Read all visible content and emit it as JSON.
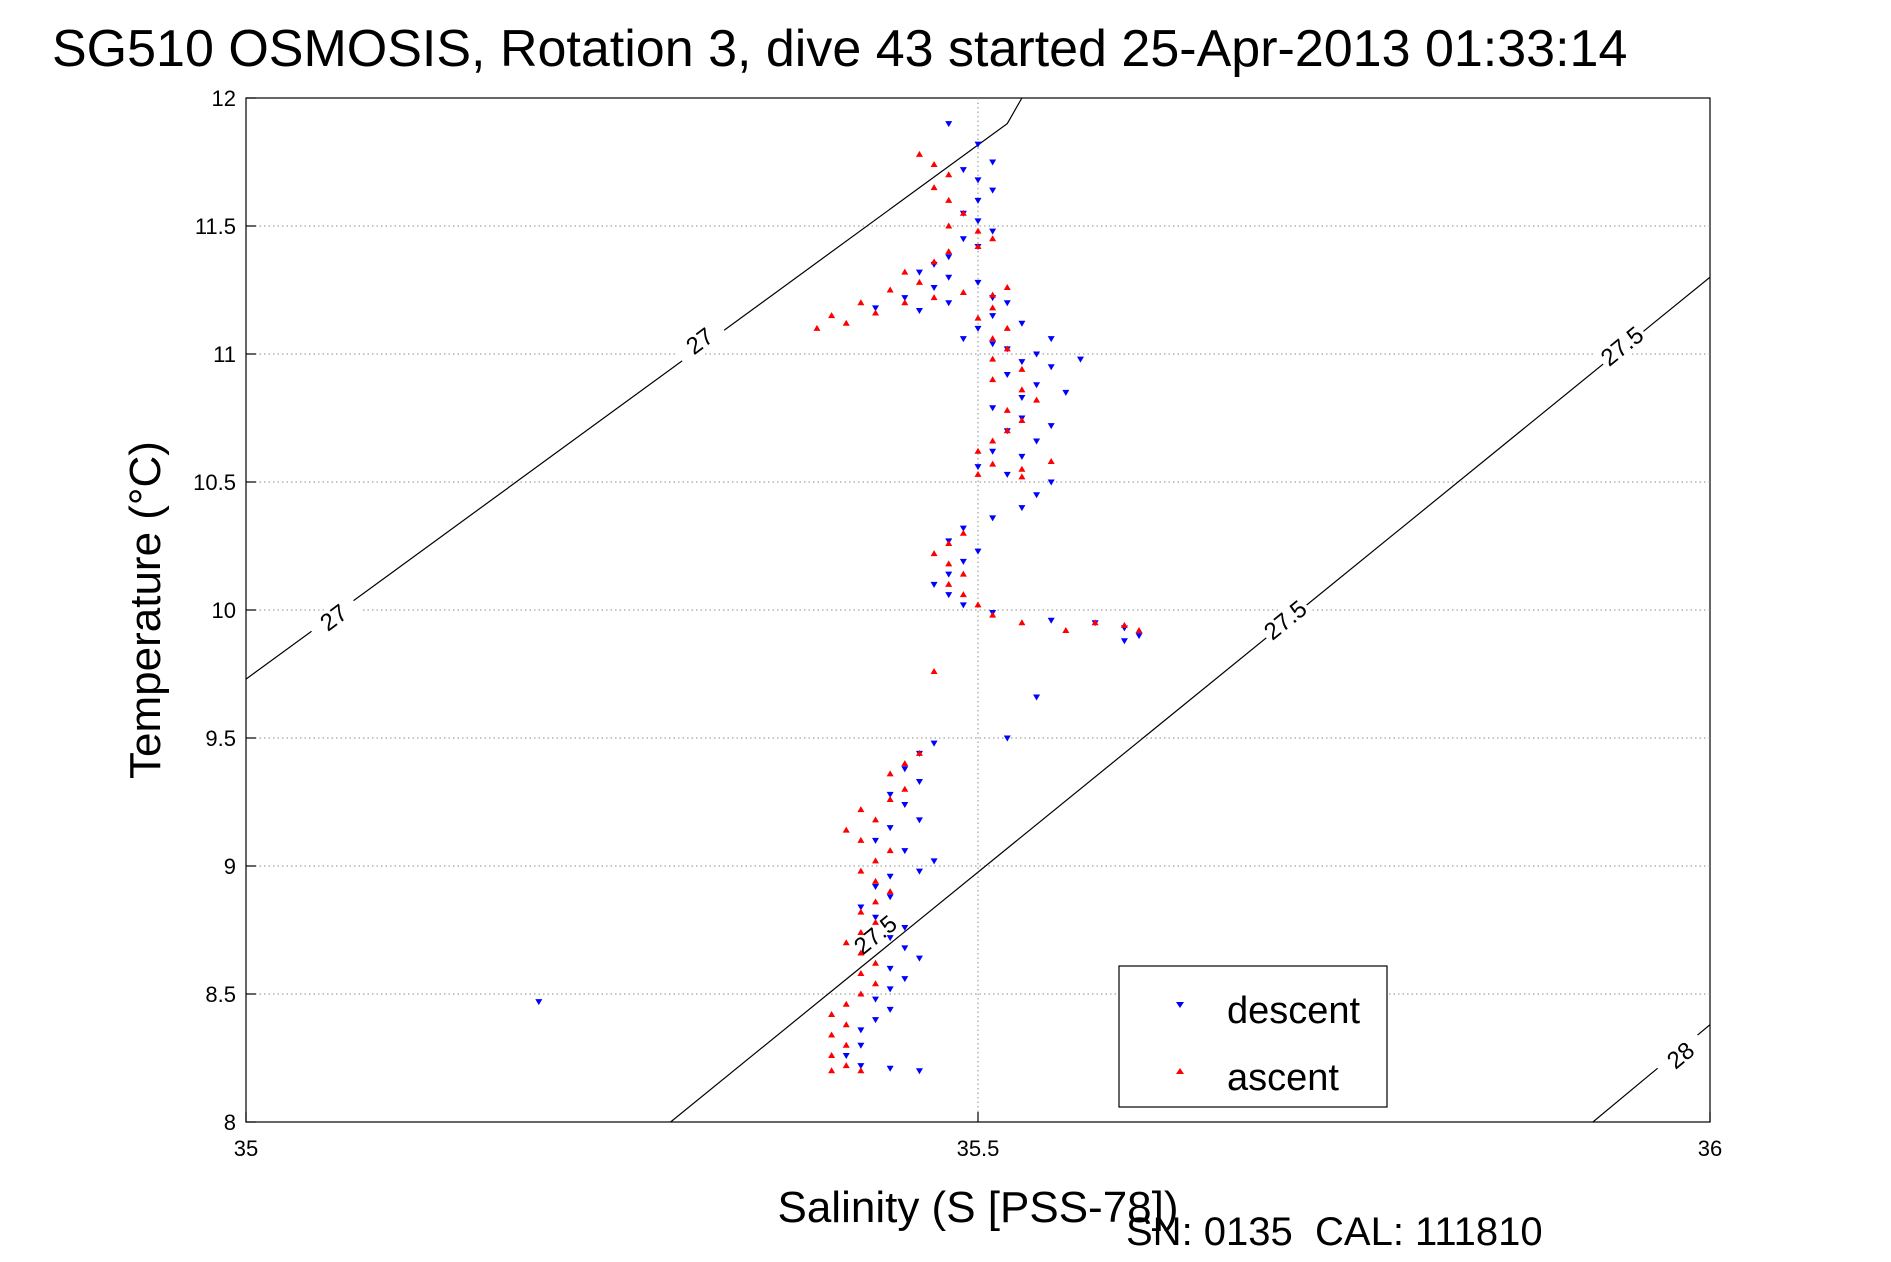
{
  "chart_data": {
    "type": "scatter",
    "title": "SG510 OSMOSIS, Rotation 3, dive 43 started 25-Apr-2013 01:33:14",
    "xlabel": "Salinity (S [PSS-78])",
    "ylabel": "Temperature (°C)",
    "footer": "SN: 0135  CAL: 111810",
    "xlim": [
      35,
      36
    ],
    "ylim": [
      8,
      12
    ],
    "xticks": [
      35,
      35.5,
      36
    ],
    "xtick_labels": [
      "35",
      "35.5",
      "36"
    ],
    "yticks": [
      8,
      8.5,
      9,
      9.5,
      10,
      10.5,
      11,
      11.5,
      12
    ],
    "ytick_labels": [
      "8",
      "8.5",
      "9",
      "9.5",
      "10",
      "10.5",
      "11",
      "11.5",
      "12"
    ],
    "grid": true,
    "legend_position": "bottom-right",
    "colors": {
      "descent": "#0000ff",
      "ascent": "#ff0000",
      "contour": "#000000",
      "grid": "#8c8c8c"
    },
    "contours": [
      {
        "label": "27",
        "points": [
          [
            35.0,
            9.73
          ],
          [
            35.52,
            11.9
          ],
          [
            35.53,
            12.0
          ]
        ],
        "label_at": [
          [
            35.06,
            9.97
          ],
          [
            35.31,
            11.05
          ]
        ]
      },
      {
        "label": "27.5",
        "points": [
          [
            35.29,
            8.0
          ],
          [
            36.0,
            11.3
          ]
        ],
        "label_at": [
          [
            35.43,
            8.73
          ],
          [
            35.71,
            9.96
          ],
          [
            35.94,
            11.03
          ]
        ]
      },
      {
        "label": "28",
        "points": [
          [
            35.92,
            8.0
          ],
          [
            36.0,
            8.38
          ]
        ],
        "label_at": [
          [
            35.98,
            8.26
          ]
        ]
      }
    ],
    "series": [
      {
        "name": "descent",
        "marker": "triangle-down",
        "points": [
          [
            35.48,
            11.9
          ],
          [
            35.5,
            11.82
          ],
          [
            35.51,
            11.75
          ],
          [
            35.49,
            11.72
          ],
          [
            35.5,
            11.68
          ],
          [
            35.51,
            11.64
          ],
          [
            35.5,
            11.6
          ],
          [
            35.49,
            11.55
          ],
          [
            35.5,
            11.52
          ],
          [
            35.51,
            11.48
          ],
          [
            35.49,
            11.45
          ],
          [
            35.5,
            11.42
          ],
          [
            35.48,
            11.38
          ],
          [
            35.47,
            11.35
          ],
          [
            35.46,
            11.32
          ],
          [
            35.48,
            11.3
          ],
          [
            35.5,
            11.28
          ],
          [
            35.47,
            11.26
          ],
          [
            35.45,
            11.22
          ],
          [
            35.43,
            11.18
          ],
          [
            35.46,
            11.17
          ],
          [
            35.48,
            11.2
          ],
          [
            35.51,
            11.22
          ],
          [
            35.52,
            11.2
          ],
          [
            35.51,
            11.15
          ],
          [
            35.53,
            11.12
          ],
          [
            35.5,
            11.1
          ],
          [
            35.49,
            11.06
          ],
          [
            35.51,
            11.04
          ],
          [
            35.52,
            11.02
          ],
          [
            35.54,
            11.0
          ],
          [
            35.53,
            10.97
          ],
          [
            35.55,
            10.95
          ],
          [
            35.52,
            10.92
          ],
          [
            35.54,
            10.88
          ],
          [
            35.56,
            10.85
          ],
          [
            35.53,
            10.83
          ],
          [
            35.51,
            10.79
          ],
          [
            35.53,
            10.75
          ],
          [
            35.55,
            10.72
          ],
          [
            35.52,
            10.7
          ],
          [
            35.54,
            10.66
          ],
          [
            35.51,
            10.62
          ],
          [
            35.53,
            10.6
          ],
          [
            35.5,
            10.56
          ],
          [
            35.52,
            10.53
          ],
          [
            35.55,
            10.5
          ],
          [
            35.54,
            10.45
          ],
          [
            35.53,
            10.4
          ],
          [
            35.51,
            10.36
          ],
          [
            35.49,
            10.32
          ],
          [
            35.48,
            10.27
          ],
          [
            35.5,
            10.23
          ],
          [
            35.49,
            10.19
          ],
          [
            35.48,
            10.14
          ],
          [
            35.47,
            10.1
          ],
          [
            35.48,
            10.06
          ],
          [
            35.49,
            10.02
          ],
          [
            35.51,
            9.99
          ],
          [
            35.55,
            9.96
          ],
          [
            35.58,
            9.95
          ],
          [
            35.6,
            9.93
          ],
          [
            35.61,
            9.9
          ],
          [
            35.6,
            9.88
          ],
          [
            35.57,
            10.98
          ],
          [
            35.55,
            11.06
          ],
          [
            35.52,
            9.5
          ],
          [
            35.54,
            9.66
          ],
          [
            35.47,
            9.48
          ],
          [
            35.46,
            9.44
          ],
          [
            35.45,
            9.38
          ],
          [
            35.46,
            9.33
          ],
          [
            35.44,
            9.28
          ],
          [
            35.45,
            9.24
          ],
          [
            35.46,
            9.18
          ],
          [
            35.44,
            9.15
          ],
          [
            35.43,
            9.1
          ],
          [
            35.45,
            9.06
          ],
          [
            35.47,
            9.02
          ],
          [
            35.46,
            8.98
          ],
          [
            35.44,
            8.96
          ],
          [
            35.43,
            8.92
          ],
          [
            35.44,
            8.88
          ],
          [
            35.42,
            8.84
          ],
          [
            35.43,
            8.8
          ],
          [
            35.45,
            8.76
          ],
          [
            35.44,
            8.72
          ],
          [
            35.45,
            8.68
          ],
          [
            35.46,
            8.64
          ],
          [
            35.44,
            8.6
          ],
          [
            35.45,
            8.56
          ],
          [
            35.44,
            8.52
          ],
          [
            35.43,
            8.48
          ],
          [
            35.44,
            8.44
          ],
          [
            35.43,
            8.4
          ],
          [
            35.42,
            8.36
          ],
          [
            35.42,
            8.3
          ],
          [
            35.41,
            8.26
          ],
          [
            35.42,
            8.22
          ],
          [
            35.44,
            8.21
          ],
          [
            35.46,
            8.2
          ],
          [
            35.2,
            8.47
          ]
        ]
      },
      {
        "name": "ascent",
        "marker": "triangle-up",
        "points": [
          [
            35.46,
            11.78
          ],
          [
            35.47,
            11.74
          ],
          [
            35.48,
            11.7
          ],
          [
            35.47,
            11.65
          ],
          [
            35.48,
            11.6
          ],
          [
            35.49,
            11.55
          ],
          [
            35.48,
            11.5
          ],
          [
            35.5,
            11.48
          ],
          [
            35.51,
            11.45
          ],
          [
            35.5,
            11.42
          ],
          [
            35.48,
            11.4
          ],
          [
            35.47,
            11.36
          ],
          [
            35.45,
            11.32
          ],
          [
            35.46,
            11.28
          ],
          [
            35.44,
            11.25
          ],
          [
            35.42,
            11.2
          ],
          [
            35.4,
            11.15
          ],
          [
            35.39,
            11.1
          ],
          [
            35.41,
            11.12
          ],
          [
            35.43,
            11.16
          ],
          [
            35.45,
            11.2
          ],
          [
            35.47,
            11.22
          ],
          [
            35.49,
            11.24
          ],
          [
            35.51,
            11.23
          ],
          [
            35.52,
            11.26
          ],
          [
            35.51,
            11.18
          ],
          [
            35.5,
            11.14
          ],
          [
            35.52,
            11.1
          ],
          [
            35.51,
            11.06
          ],
          [
            35.52,
            11.02
          ],
          [
            35.51,
            10.98
          ],
          [
            35.53,
            10.94
          ],
          [
            35.51,
            10.9
          ],
          [
            35.53,
            10.86
          ],
          [
            35.54,
            10.82
          ],
          [
            35.52,
            10.78
          ],
          [
            35.53,
            10.74
          ],
          [
            35.52,
            10.7
          ],
          [
            35.51,
            10.66
          ],
          [
            35.5,
            10.62
          ],
          [
            35.51,
            10.57
          ],
          [
            35.53,
            10.55
          ],
          [
            35.55,
            10.58
          ],
          [
            35.53,
            10.52
          ],
          [
            35.5,
            10.53
          ],
          [
            35.49,
            10.3
          ],
          [
            35.48,
            10.26
          ],
          [
            35.47,
            10.22
          ],
          [
            35.48,
            10.18
          ],
          [
            35.49,
            10.14
          ],
          [
            35.48,
            10.1
          ],
          [
            35.49,
            10.06
          ],
          [
            35.5,
            10.02
          ],
          [
            35.51,
            9.98
          ],
          [
            35.53,
            9.95
          ],
          [
            35.56,
            9.92
          ],
          [
            35.58,
            9.95
          ],
          [
            35.6,
            9.94
          ],
          [
            35.61,
            9.92
          ],
          [
            35.47,
            9.76
          ],
          [
            35.46,
            9.44
          ],
          [
            35.45,
            9.4
          ],
          [
            35.44,
            9.36
          ],
          [
            35.45,
            9.3
          ],
          [
            35.44,
            9.26
          ],
          [
            35.42,
            9.22
          ],
          [
            35.43,
            9.18
          ],
          [
            35.41,
            9.14
          ],
          [
            35.42,
            9.1
          ],
          [
            35.44,
            9.06
          ],
          [
            35.43,
            9.02
          ],
          [
            35.42,
            8.98
          ],
          [
            35.43,
            8.94
          ],
          [
            35.44,
            8.9
          ],
          [
            35.43,
            8.86
          ],
          [
            35.42,
            8.82
          ],
          [
            35.43,
            8.78
          ],
          [
            35.42,
            8.74
          ],
          [
            35.41,
            8.7
          ],
          [
            35.42,
            8.66
          ],
          [
            35.43,
            8.62
          ],
          [
            35.42,
            8.58
          ],
          [
            35.43,
            8.54
          ],
          [
            35.42,
            8.5
          ],
          [
            35.41,
            8.46
          ],
          [
            35.4,
            8.42
          ],
          [
            35.41,
            8.38
          ],
          [
            35.4,
            8.34
          ],
          [
            35.41,
            8.3
          ],
          [
            35.4,
            8.26
          ],
          [
            35.41,
            8.22
          ],
          [
            35.42,
            8.2
          ],
          [
            35.4,
            8.2
          ]
        ]
      }
    ]
  }
}
